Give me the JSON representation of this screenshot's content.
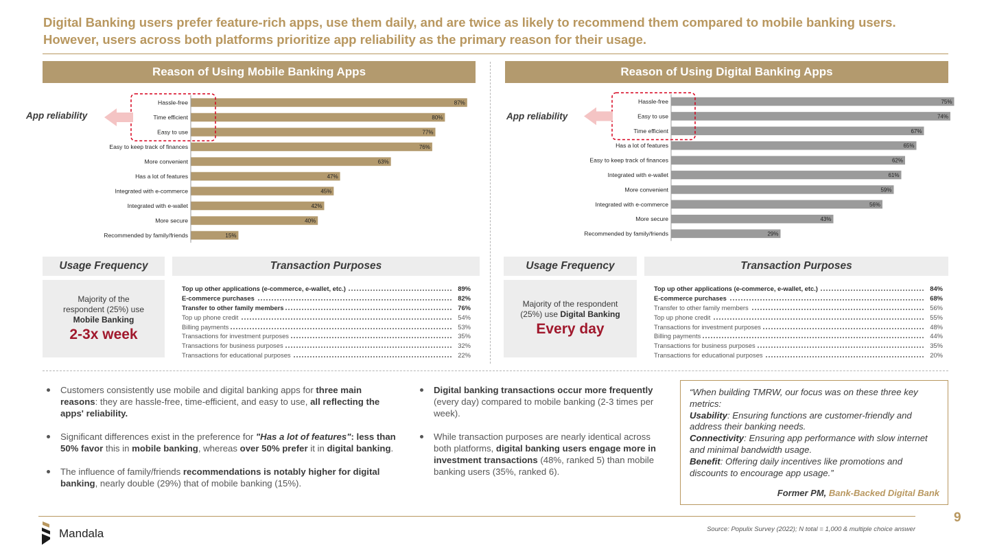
{
  "headline": "Digital Banking users prefer feature-rich apps, use them daily, and are twice as likely to recommend them compared to mobile banking users. However, users across both platforms prioritize app reliability as the primary reason for their usage.",
  "left": {
    "panel_title": "Reason of Using Mobile Banking Apps",
    "reason_label": "App reliability",
    "usage_title": "Usage Frequency",
    "usage_line1": "Majority of the",
    "usage_line2": "respondent (25%) use",
    "usage_line3": "Mobile Banking",
    "usage_big": "2-3x week",
    "tp_title": "Transaction Purposes",
    "transactions": [
      {
        "label": "Top up other applications (e-commerce, e-wallet, etc.)",
        "value": "89%",
        "bold": true
      },
      {
        "label": "E-commerce purchases",
        "value": "82%",
        "bold": true
      },
      {
        "label": "Transfer to other family members",
        "value": "76%",
        "bold": true
      },
      {
        "label": "Top up phone credit",
        "value": "54%",
        "bold": false
      },
      {
        "label": "Billing payments",
        "value": "53%",
        "bold": false
      },
      {
        "label": "Transactions for investment purposes",
        "value": "35%",
        "bold": false
      },
      {
        "label": "Transactions for business purposes",
        "value": "32%",
        "bold": false
      },
      {
        "label": "Transactions for educational purposes",
        "value": "22%",
        "bold": false
      }
    ]
  },
  "right": {
    "panel_title": "Reason of Using Digital Banking Apps",
    "reason_label": "App reliability",
    "usage_title": "Usage Frequency",
    "usage_line1": "Majority of the respondent",
    "usage_line2": "(25%) use",
    "usage_line3": "Digital Banking",
    "usage_big": "Every day",
    "tp_title": "Transaction Purposes",
    "transactions": [
      {
        "label": "Top up other applications (e-commerce, e-wallet, etc.)",
        "value": "84%",
        "bold": true
      },
      {
        "label": "E-commerce purchases",
        "value": "68%",
        "bold": true
      },
      {
        "label": "Transfer to other family members",
        "value": "56%",
        "bold": false
      },
      {
        "label": "Top up phone credit",
        "value": "55%",
        "bold": false
      },
      {
        "label": "Transactions for investment purposes",
        "value": "48%",
        "bold": false
      },
      {
        "label": "Billing payments",
        "value": "44%",
        "bold": false
      },
      {
        "label": "Transactions for business purposes",
        "value": "35%",
        "bold": false
      },
      {
        "label": "Transactions for educational purposes",
        "value": "20%",
        "bold": false
      }
    ]
  },
  "chart_data": [
    {
      "type": "bar",
      "orientation": "horizontal",
      "title": "Reason of Using Mobile Banking Apps",
      "categories": [
        "Hassle-free",
        "Time efficient",
        "Easy to use",
        "Easy to keep track of finances",
        "More convenient",
        "Has a lot of features",
        "Integrated with e-commerce",
        "Integrated with e-wallet",
        "More secure",
        "Recommended by family/friends"
      ],
      "values": [
        87,
        80,
        77,
        76,
        63,
        47,
        45,
        42,
        40,
        15
      ],
      "value_labels": [
        "87%",
        "80%",
        "77%",
        "76%",
        "63%",
        "47%",
        "45%",
        "42%",
        "40%",
        "15%"
      ],
      "highlighted": [
        "Hassle-free",
        "Time efficient",
        "Easy to use"
      ],
      "bar_color": "#b39a6e",
      "xlim": [
        0,
        100
      ]
    },
    {
      "type": "bar",
      "orientation": "horizontal",
      "title": "Reason of Using Digital Banking Apps",
      "categories": [
        "Hassle-free",
        "Easy to use",
        "Time efficient",
        "Has a lot of features",
        "Easy to keep track of finances",
        "Integrated with e-wallet",
        "More convenient",
        "Integrated with e-commerce",
        "More secure",
        "Recommended by family/friends"
      ],
      "values": [
        75,
        74,
        67,
        65,
        62,
        61,
        59,
        56,
        43,
        29
      ],
      "value_labels": [
        "75%",
        "74%",
        "67%",
        "65%",
        "62%",
        "61%",
        "59%",
        "56%",
        "43%",
        "29%"
      ],
      "highlighted": [
        "Hassle-free",
        "Easy to use",
        "Time efficient"
      ],
      "bar_color": "#9b9b9b",
      "xlim": [
        0,
        100
      ]
    }
  ],
  "bullets_left": [
    {
      "segments": [
        {
          "t": "Customers consistently use mobile and digital banking apps for "
        },
        {
          "t": "three main reasons",
          "b": true
        },
        {
          "t": ": they are hassle-free, time-efficient, and easy to use, "
        },
        {
          "t": "all reflecting the apps' reliability.",
          "b": true
        }
      ]
    },
    {
      "segments": [
        {
          "t": "Significant differences exist in the preference for "
        },
        {
          "t": "\"Has a lot of features\"",
          "b": true,
          "i": true
        },
        {
          "t": ": less than 50% favor",
          "b": true
        },
        {
          "t": " this in "
        },
        {
          "t": "mobile banking",
          "b": true
        },
        {
          "t": ", whereas "
        },
        {
          "t": "over 50% prefer",
          "b": true
        },
        {
          "t": " it in "
        },
        {
          "t": "digital banking",
          "b": true
        },
        {
          "t": "."
        }
      ]
    },
    {
      "segments": [
        {
          "t": "The influence of family/friends "
        },
        {
          "t": "recommendations is notably higher for digital banking",
          "b": true
        },
        {
          "t": ", nearly double (29%) that of mobile banking (15%)."
        }
      ]
    }
  ],
  "bullets_mid": [
    {
      "segments": [
        {
          "t": "Digital banking transactions occur more frequently",
          "b": true
        },
        {
          "t": " (every day) compared to mobile banking (2-3 times per week)."
        }
      ]
    },
    {
      "segments": [
        {
          "t": "While transaction purposes are nearly identical across both platforms, "
        },
        {
          "t": "digital banking users engage more in investment transactions",
          "b": true
        },
        {
          "t": " (48%, ranked 5) than mobile banking users (35%, ranked 6)."
        }
      ]
    }
  ],
  "quote": {
    "segments": [
      {
        "t": "“When building TMRW, our focus was on these three key metrics:"
      },
      {
        "t": "Usability",
        "b": true,
        "br": true
      },
      {
        "t": ": Ensuring functions are customer-friendly and address their banking needs."
      },
      {
        "t": "Connectivity",
        "b": true,
        "br": true
      },
      {
        "t": ": Ensuring app performance with slow internet and minimal bandwidth usage."
      },
      {
        "t": "Benefit",
        "b": true,
        "br": true
      },
      {
        "t": ": Offering daily incentives like promotions and discounts to encourage app usage.”"
      }
    ],
    "author_role": "Former PM, ",
    "author_org": "Bank-Backed Digital Bank"
  },
  "footer": {
    "brand": "Mandala",
    "source": "Source: Populix Survey (2022); N total = 1,000 & multiple choice answer",
    "page_number": "9"
  },
  "colors": {
    "accent": "#b8975f",
    "highlight_red": "#a0182c",
    "arrow": "#f4c4c4",
    "dashed_box": "#d6001c"
  }
}
